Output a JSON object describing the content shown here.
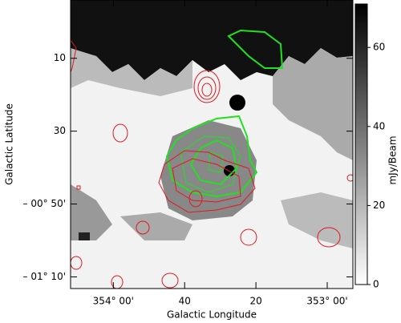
{
  "chart_data": {
    "type": "image",
    "xlabel": "Galactic Longitude",
    "ylabel": "Galactic Latitude",
    "xlim": [
      354.2,
      352.88
    ],
    "xticks": [
      {
        "value": 354.0,
        "label": "354° 00'"
      },
      {
        "value": 353.6667,
        "label": "40"
      },
      {
        "value": 353.3333,
        "label": "20"
      },
      {
        "value": 353.0,
        "label": "353° 00'"
      }
    ],
    "ylim": [
      -1.22,
      0.1
    ],
    "yticks": [
      {
        "value": -0.1667,
        "label": "10"
      },
      {
        "value": -0.5,
        "label": "30"
      },
      {
        "value": -0.8333,
        "label": "– 00° 50'"
      },
      {
        "value": -1.1667,
        "label": "– 01° 10'"
      }
    ],
    "colorbar": {
      "label": "mJy/Beam",
      "lim": [
        0,
        71
      ],
      "ticks": [
        0,
        20,
        40,
        60
      ]
    }
  }
}
